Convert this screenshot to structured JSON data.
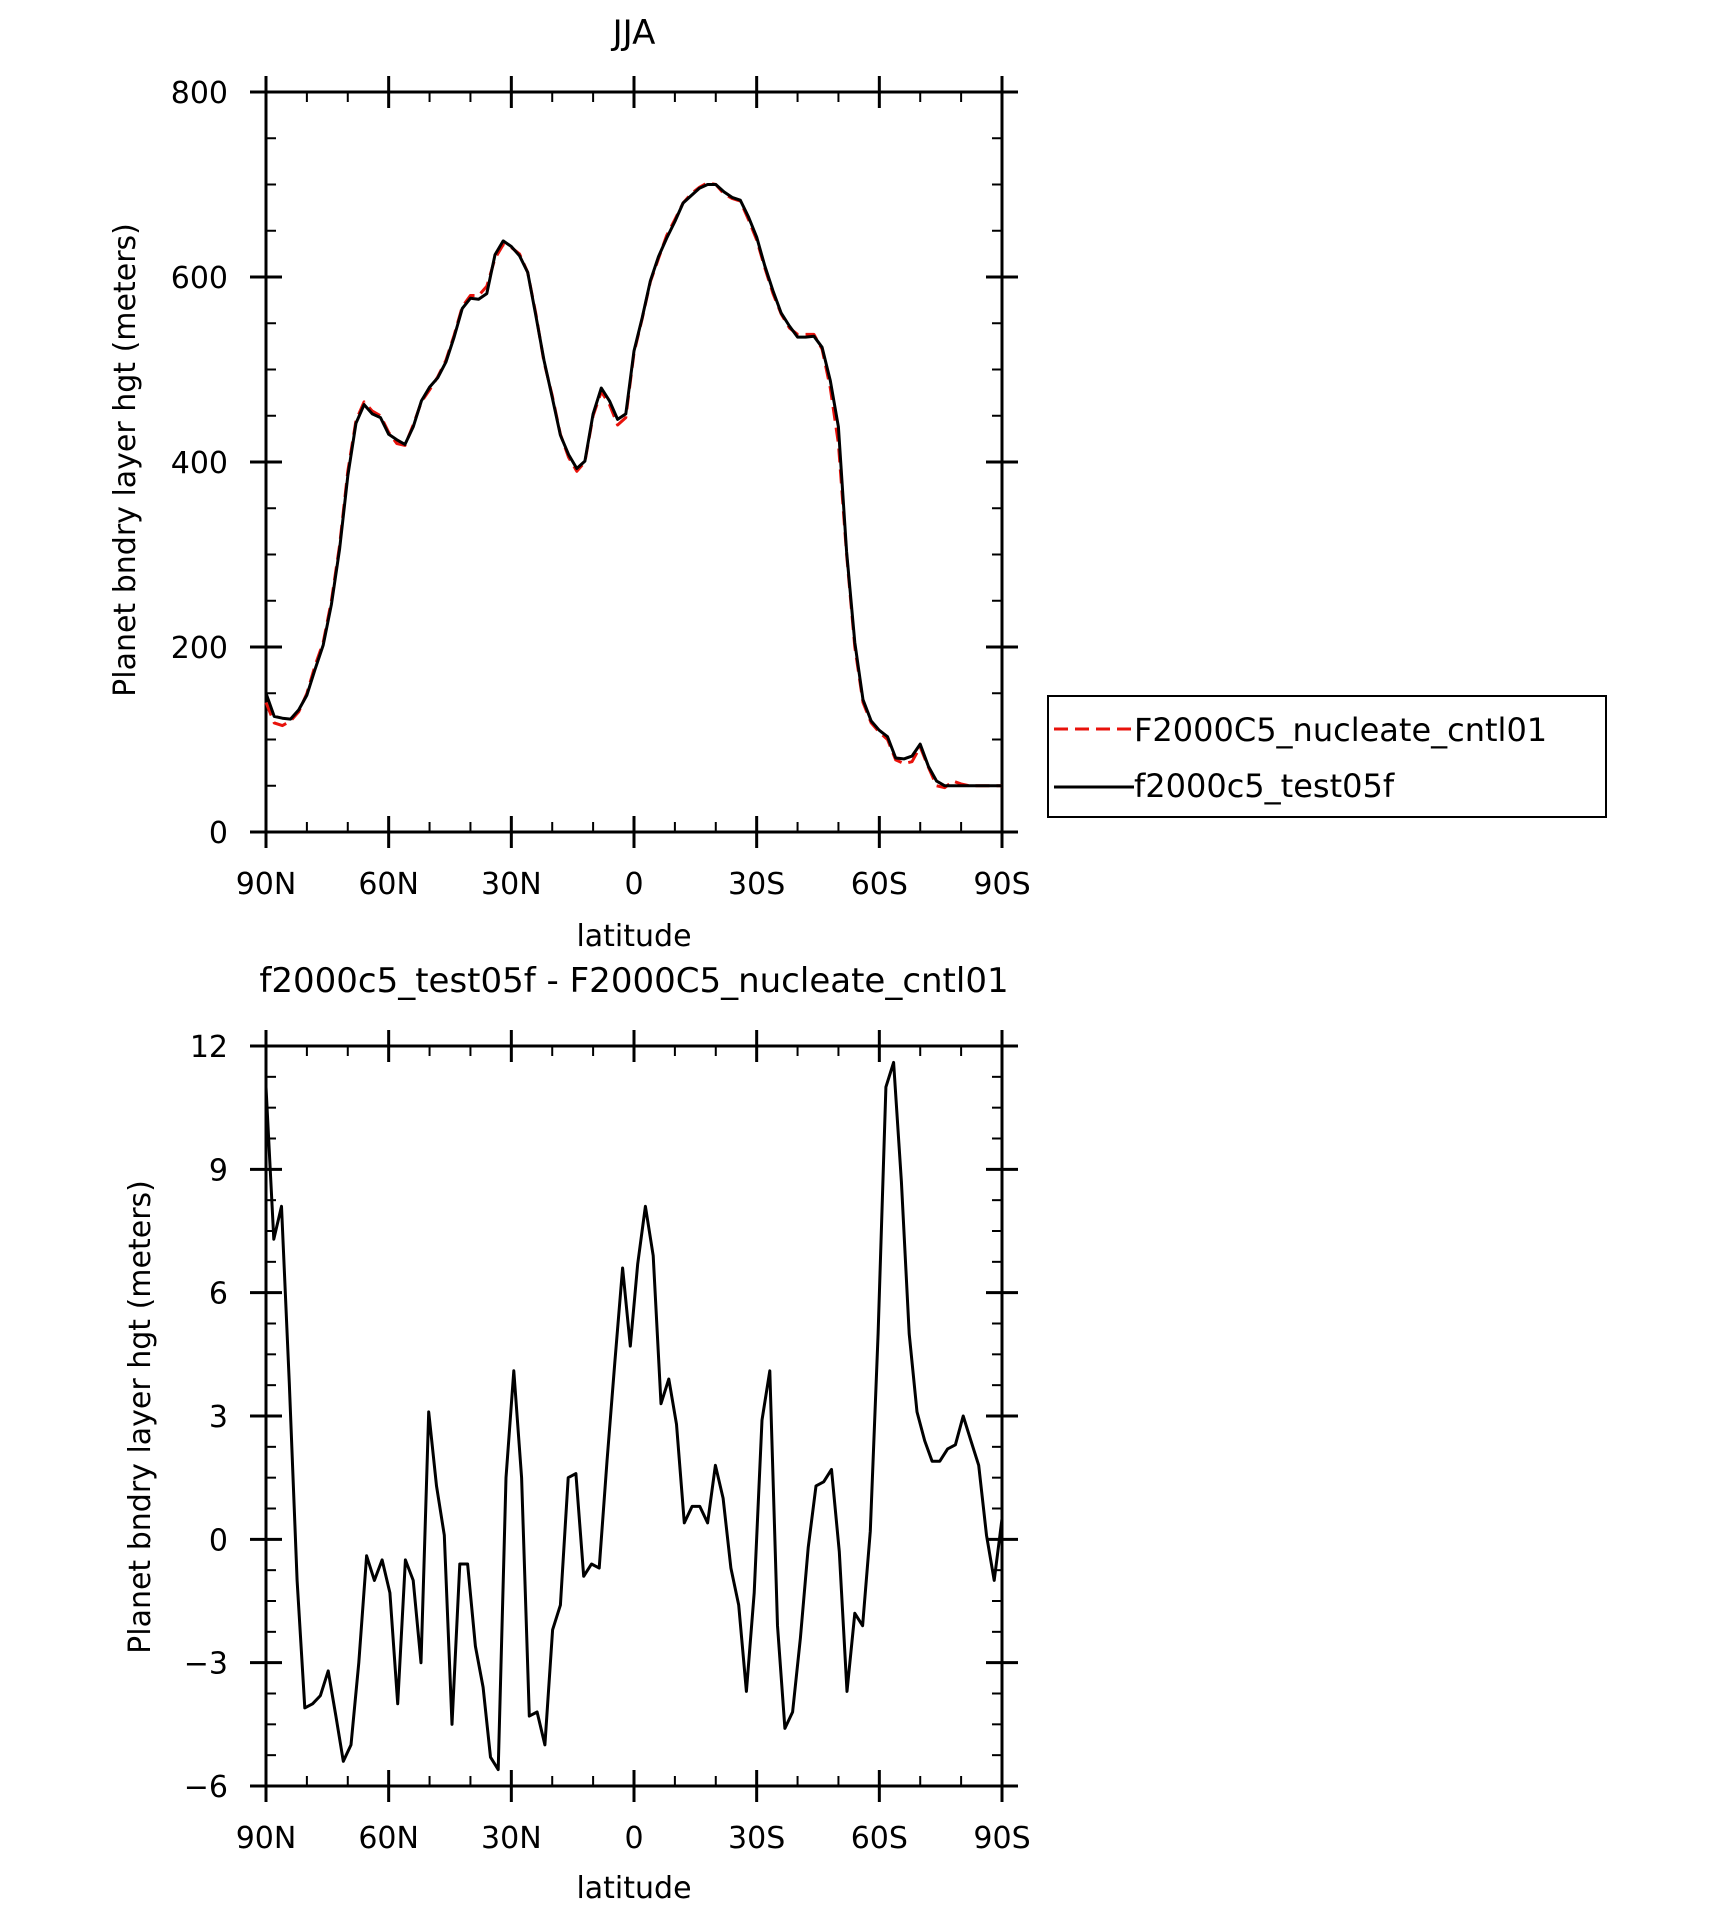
{
  "chart_data": [
    {
      "type": "line",
      "title": "JJA",
      "xlabel": "latitude",
      "ylabel": "Planet bndry layer hgt (meters)",
      "xlim": [
        90,
        -90
      ],
      "ylim": [
        0,
        800
      ],
      "xticks": [
        90,
        60,
        30,
        0,
        -30,
        -60,
        -90
      ],
      "xtick_labels": [
        "90N",
        "60N",
        "30N",
        "0",
        "30S",
        "60S",
        "90S"
      ],
      "yticks": [
        0,
        200,
        400,
        600,
        800
      ],
      "ytick_labels": [
        "0",
        "200",
        "400",
        "600",
        "800"
      ],
      "legend_position": "right",
      "x": [
        90,
        88,
        86,
        84,
        82,
        80,
        78,
        76,
        74,
        72,
        70,
        68,
        66,
        64,
        62,
        60,
        58,
        56,
        54,
        52,
        50,
        48,
        46,
        44,
        42,
        40,
        38,
        36,
        34,
        32,
        30,
        28,
        26,
        24,
        22,
        20,
        18,
        16,
        14,
        12,
        10,
        8,
        6,
        4,
        2,
        0,
        -2,
        -4,
        -6,
        -8,
        -10,
        -12,
        -14,
        -16,
        -18,
        -20,
        -22,
        -24,
        -26,
        -28,
        -30,
        -32,
        -34,
        -36,
        -38,
        -40,
        -42,
        -44,
        -46,
        -48,
        -50,
        -52,
        -54,
        -56,
        -58,
        -60,
        -62,
        -64,
        -66,
        -68,
        -70,
        -72,
        -74,
        -76,
        -78,
        -80,
        -82,
        -84,
        -86,
        -88,
        -90
      ],
      "series": [
        {
          "name": "F2000C5_nucleate_cntl01",
          "color": "#e8120b",
          "dash": "dashed",
          "values": [
            140,
            118,
            115,
            120,
            130,
            150,
            180,
            205,
            250,
            310,
            390,
            445,
            465,
            455,
            450,
            432,
            420,
            418,
            440,
            465,
            478,
            492,
            510,
            537,
            568,
            580,
            580,
            590,
            620,
            635,
            632,
            625,
            605,
            560,
            508,
            472,
            430,
            405,
            390,
            400,
            450,
            476,
            462,
            440,
            448,
            518,
            555,
            595,
            620,
            645,
            662,
            680,
            690,
            697,
            702,
            700,
            690,
            685,
            682,
            662,
            640,
            610,
            582,
            560,
            545,
            538,
            538,
            538,
            522,
            480,
            420,
            300,
            200,
            140,
            118,
            108,
            100,
            78,
            74,
            76,
            92,
            70,
            50,
            48,
            55,
            52,
            50,
            50,
            50,
            50,
            50
          ]
        },
        {
          "name": "f2000c5_test05f",
          "color": "#000000",
          "dash": "solid",
          "values": [
            150,
            125,
            123,
            122,
            132,
            148,
            176,
            202,
            246,
            306,
            385,
            442,
            462,
            452,
            448,
            430,
            424,
            419,
            438,
            466,
            481,
            491,
            508,
            535,
            566,
            577,
            576,
            582,
            624,
            639,
            633,
            623,
            605,
            558,
            510,
            470,
            429,
            408,
            393,
            401,
            452,
            480,
            466,
            446,
            452,
            520,
            556,
            596,
            622,
            642,
            660,
            680,
            688,
            696,
            700,
            700,
            692,
            686,
            683,
            665,
            643,
            612,
            585,
            561,
            547,
            535,
            535,
            536,
            524,
            488,
            438,
            303,
            205,
            143,
            120,
            110,
            103,
            80,
            79,
            82,
            95,
            71,
            55,
            50,
            50,
            50,
            50,
            50,
            50,
            50,
            50
          ]
        }
      ]
    },
    {
      "type": "line",
      "title": "f2000c5_test05f - F2000C5_nucleate_cntl01",
      "xlabel": "latitude",
      "ylabel": "Planet bndry layer hgt (meters)",
      "xlim": [
        90,
        -90
      ],
      "ylim": [
        -6,
        12
      ],
      "xticks": [
        90,
        60,
        30,
        0,
        -30,
        -60,
        -90
      ],
      "xtick_labels": [
        "90N",
        "60N",
        "30N",
        "0",
        "30S",
        "60S",
        "90S"
      ],
      "yticks": [
        -6,
        -3,
        0,
        3,
        6,
        9,
        12
      ],
      "ytick_labels": [
        "−6",
        "−3",
        "0",
        "3",
        "6",
        "9",
        "12"
      ],
      "x": [
        90,
        88.1,
        86.2,
        84.3,
        82.4,
        80.5,
        78.6,
        76.7,
        74.8,
        72.9,
        71.1,
        69.2,
        67.3,
        65.4,
        63.5,
        61.6,
        59.7,
        57.8,
        55.9,
        54,
        52.1,
        50.2,
        48.3,
        46.4,
        44.5,
        42.6,
        40.7,
        38.8,
        36.9,
        35.1,
        33.2,
        31.3,
        29.4,
        27.5,
        25.6,
        23.7,
        21.8,
        19.9,
        18,
        16.1,
        14.2,
        12.3,
        10.4,
        8.5,
        6.6,
        4.7,
        2.8,
        0.9,
        -0.9,
        -2.8,
        -4.7,
        -6.6,
        -8.5,
        -10.4,
        -12.3,
        -14.2,
        -16.1,
        -18,
        -19.9,
        -21.8,
        -23.7,
        -25.6,
        -27.5,
        -29.4,
        -31.3,
        -33.2,
        -35.1,
        -36.9,
        -38.8,
        -40.7,
        -42.6,
        -44.5,
        -46.4,
        -48.3,
        -50.2,
        -52.1,
        -54,
        -55.9,
        -57.8,
        -59.7,
        -61.6,
        -63.5,
        -65.4,
        -67.3,
        -69.2,
        -71.1,
        -72.9,
        -74.8,
        -76.7,
        -78.6,
        -80.5,
        -82.4,
        -84.3,
        -86.2,
        -88.1,
        -90
      ],
      "series": [
        {
          "name": "f2000c5_test05f - F2000C5_nucleate_cntl01",
          "color": "#000000",
          "values": [
            11,
            7.3,
            8.1,
            3.8,
            -1,
            -4.1,
            -4,
            -3.8,
            -3.2,
            -4.3,
            -5.4,
            -5,
            -3,
            -0.4,
            -1,
            -0.5,
            -1.3,
            -4,
            -0.5,
            -1,
            -3,
            3.1,
            1.3,
            0.1,
            -4.5,
            -0.6,
            -0.6,
            -2.6,
            -3.6,
            -5.3,
            -5.6,
            1.5,
            4.1,
            1.5,
            -4.3,
            -4.2,
            -5,
            -2.2,
            -1.6,
            1.5,
            1.6,
            -0.9,
            -0.6,
            -0.7,
            1.9,
            4.3,
            6.6,
            4.7,
            6.7,
            8.1,
            6.9,
            3.3,
            3.9,
            2.8,
            0.4,
            0.8,
            0.8,
            0.4,
            1.8,
            1,
            -0.7,
            -1.6,
            -3.7,
            -1.3,
            2.9,
            4.1,
            -2.1,
            -4.6,
            -4.2,
            -2.4,
            -0.2,
            1.3,
            1.4,
            1.7,
            -0.3,
            -3.7,
            -1.8,
            -2.1,
            0.2,
            5,
            11,
            11.6,
            8.7,
            5,
            3.1,
            2.4,
            1.9,
            1.9,
            2.2,
            2.3,
            3,
            2.4,
            1.8,
            0.1,
            -1,
            0.5
          ]
        }
      ]
    }
  ]
}
